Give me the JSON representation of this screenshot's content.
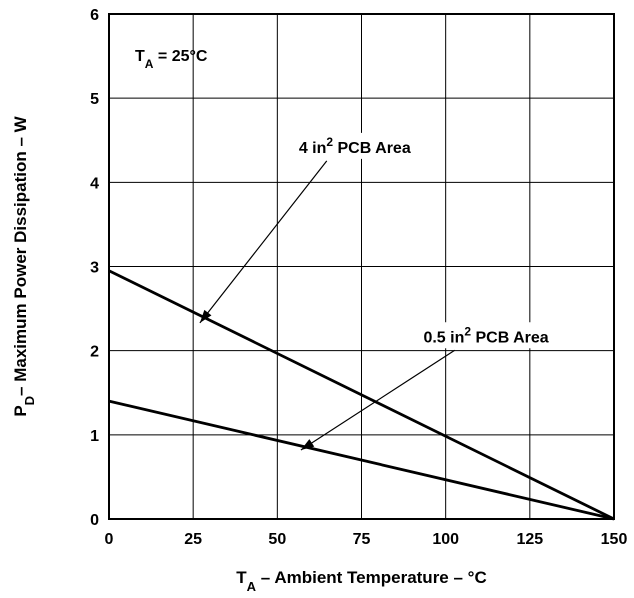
{
  "chart_data": {
    "type": "line",
    "title": "",
    "xlabel": {
      "main": "T",
      "sub": "A",
      "rest": " – Ambient Temperature – °C"
    },
    "ylabel": {
      "main": "P",
      "sub": "D",
      "rest": "– Maximum Power Dissipation – W"
    },
    "xlim": [
      0,
      150
    ],
    "ylim": [
      0,
      6
    ],
    "xticks": [
      0,
      25,
      50,
      75,
      100,
      125,
      150
    ],
    "yticks": [
      0,
      1,
      2,
      3,
      4,
      5,
      6
    ],
    "grid": true,
    "annotation": {
      "main": "T",
      "sub": "A",
      "rest": " = 25°C"
    },
    "series": [
      {
        "name": {
          "pre": "4 in",
          "sup": "2",
          "post": " PCB Area"
        },
        "x": [
          0,
          150
        ],
        "y": [
          2.95,
          0
        ],
        "label_at": [
          73,
          4.35
        ],
        "arrow_to": [
          27,
          2.33
        ]
      },
      {
        "name": {
          "pre": "0.5 in",
          "sup": "2",
          "post": " PCB Area"
        },
        "x": [
          0,
          150
        ],
        "y": [
          1.4,
          0
        ],
        "label_at": [
          112,
          2.1
        ],
        "arrow_to": [
          57,
          0.82
        ]
      }
    ]
  }
}
